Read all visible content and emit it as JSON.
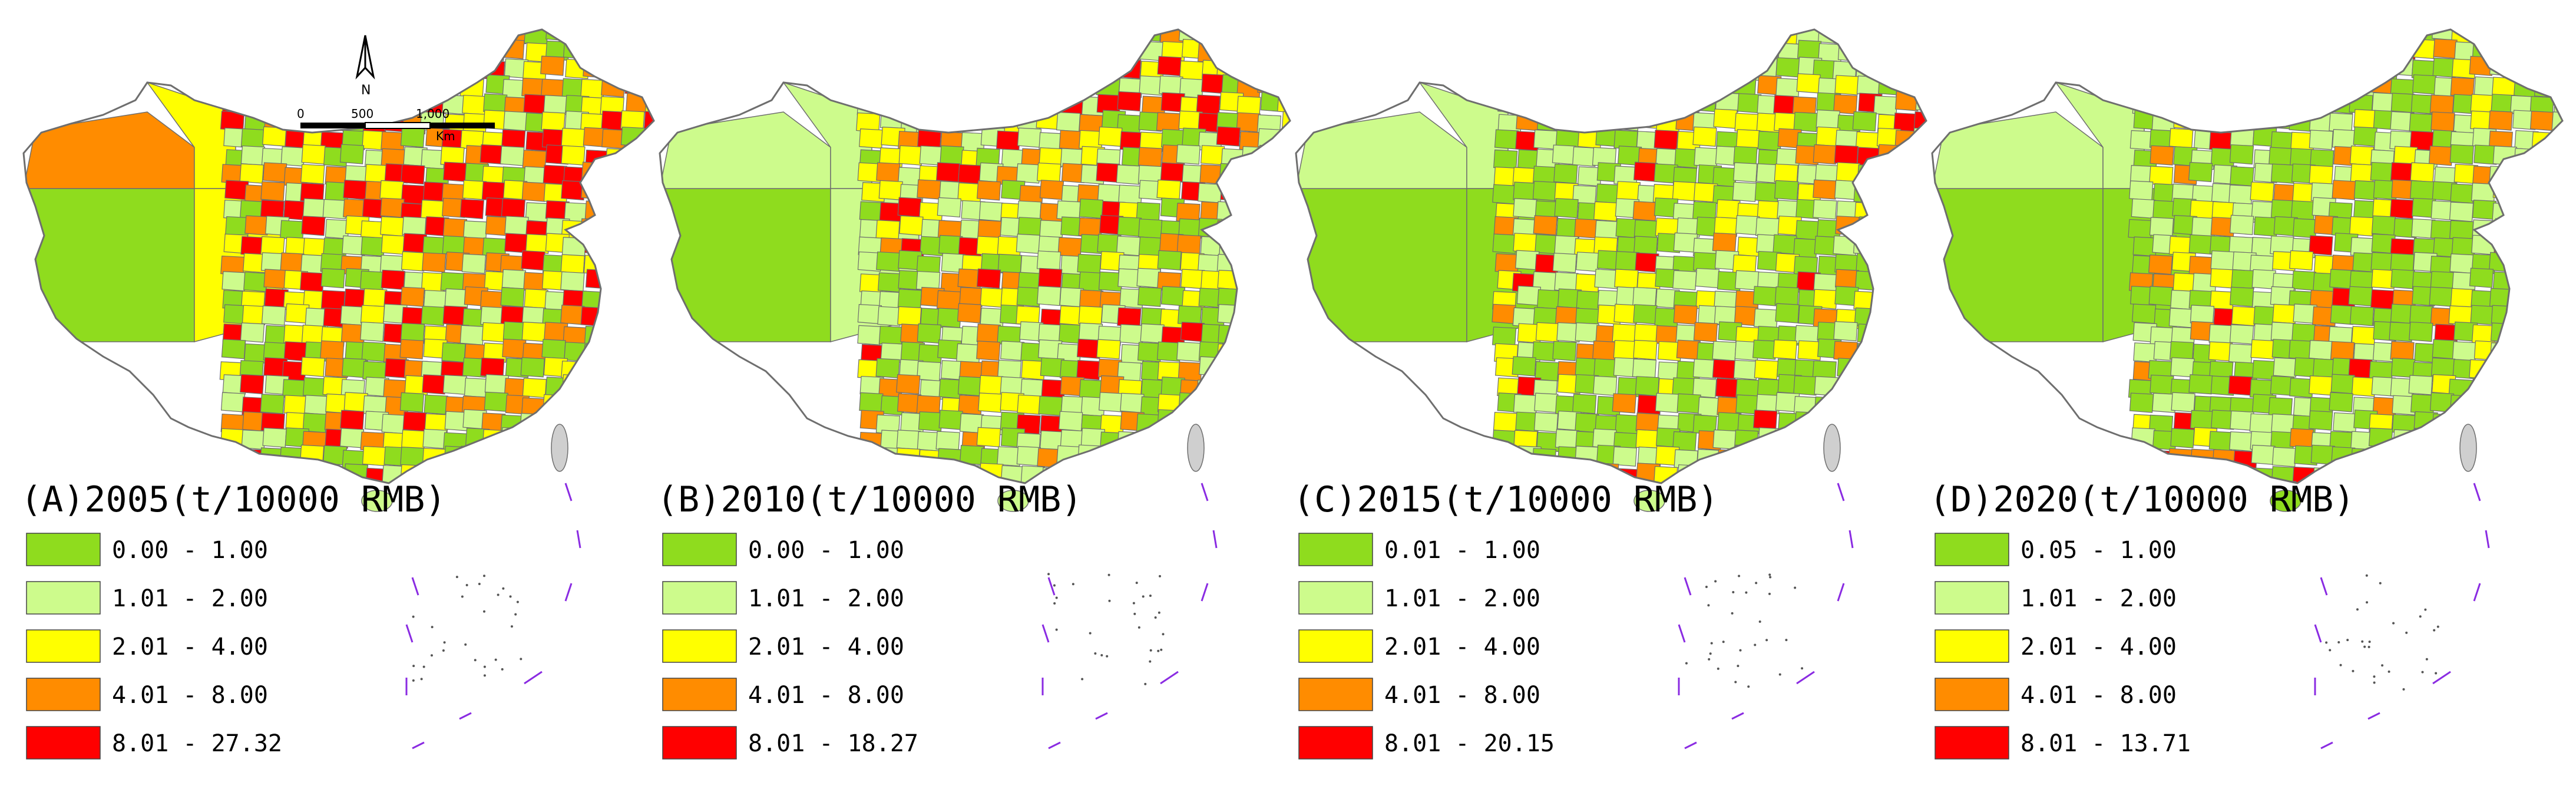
{
  "colors": {
    "class1": "#8fdc1e",
    "class2": "#cdfb8c",
    "class3": "#ffff00",
    "class4": "#ff8c00",
    "class5": "#ff0000",
    "nodata": "#cfcfcf",
    "border": "#6e6e6e"
  },
  "north_arrow": {
    "label": "N",
    "icon": "north-arrow-icon"
  },
  "scale_bar": {
    "ticks": [
      "0",
      "500",
      "1,000"
    ],
    "unit": "Km"
  },
  "panels": [
    {
      "title": "(A)2005(t/10000 RMB)",
      "legend": [
        "0.00 - 1.00",
        "1.01 - 2.00",
        "2.01 - 4.00",
        "4.01 - 8.00",
        "8.01 - 27.32"
      ],
      "region_mix": [
        0.22,
        0.22,
        0.24,
        0.18,
        0.14
      ]
    },
    {
      "title": "(B)2010(t/10000 RMB)",
      "legend": [
        "0.00 - 1.00",
        "1.01 - 2.00",
        "2.01 - 4.00",
        "4.01 - 8.00",
        "8.01 - 18.27"
      ],
      "region_mix": [
        0.28,
        0.3,
        0.22,
        0.14,
        0.06
      ]
    },
    {
      "title": "(C)2015(t/10000 RMB)",
      "legend": [
        "0.01 - 1.00",
        "1.01 - 2.00",
        "2.01 - 4.00",
        "4.01 - 8.00",
        "8.01 - 20.15"
      ],
      "region_mix": [
        0.42,
        0.32,
        0.14,
        0.09,
        0.03
      ]
    },
    {
      "title": "(D)2020(t/10000 RMB)",
      "legend": [
        "0.05 - 1.00",
        "1.01 - 2.00",
        "2.01 - 4.00",
        "4.01 - 8.00",
        "8.01 - 13.71"
      ],
      "region_mix": [
        0.5,
        0.26,
        0.1,
        0.1,
        0.04
      ]
    }
  ]
}
